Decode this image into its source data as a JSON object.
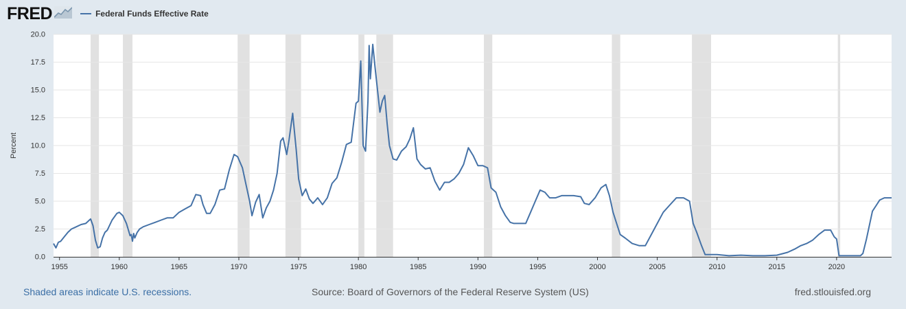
{
  "header": {
    "logo_text": "FRED",
    "logo_icon": "line-chart-icon",
    "series_legend": "Federal Funds Effective Rate"
  },
  "footer": {
    "recession_note": "Shaded areas indicate U.S. recessions.",
    "source": "Source: Board of Governors of the Federal Reserve System (US)",
    "site": "fred.stlouisfed.org"
  },
  "colors": {
    "background": "#e1e9f0",
    "plot_background": "#ffffff",
    "series": "#4572a7",
    "recession_shading": "#e1e1e1",
    "grid": "#e6e6e6"
  },
  "chart_data": {
    "type": "line",
    "title": "",
    "xlabel": "",
    "ylabel": "Percent",
    "xlim": [
      1954.5,
      2024.6
    ],
    "ylim": [
      0,
      20
    ],
    "x_ticks": [
      1955,
      1960,
      1965,
      1970,
      1975,
      1980,
      1985,
      1990,
      1995,
      2000,
      2005,
      2010,
      2015,
      2020
    ],
    "y_ticks": [
      0.0,
      2.5,
      5.0,
      7.5,
      10.0,
      12.5,
      15.0,
      17.5,
      20.0
    ],
    "y_tick_labels": [
      "0.0",
      "2.5",
      "5.0",
      "7.5",
      "10.0",
      "12.5",
      "15.0",
      "17.5",
      "20.0"
    ],
    "grid": "horizontal",
    "recessions": [
      [
        1957.6,
        1958.3
      ],
      [
        1960.3,
        1961.1
      ],
      [
        1969.9,
        1970.9
      ],
      [
        1973.9,
        1975.2
      ],
      [
        1980.0,
        1980.5
      ],
      [
        1981.5,
        1982.9
      ],
      [
        1990.5,
        1991.2
      ],
      [
        2001.2,
        2001.9
      ],
      [
        2007.9,
        2009.5
      ],
      [
        2020.1,
        2020.3
      ]
    ],
    "series": [
      {
        "name": "Federal Funds Effective Rate",
        "x": [
          1954.5,
          1954.7,
          1954.9,
          1955.1,
          1955.4,
          1955.7,
          1956.0,
          1956.4,
          1956.8,
          1957.2,
          1957.6,
          1957.8,
          1958.0,
          1958.2,
          1958.4,
          1958.6,
          1958.8,
          1959.0,
          1959.4,
          1959.8,
          1960.0,
          1960.3,
          1960.6,
          1960.9,
          1961.0,
          1961.1,
          1961.2,
          1961.3,
          1961.5,
          1961.7,
          1962.0,
          1962.5,
          1963.0,
          1963.5,
          1964.0,
          1964.5,
          1965.0,
          1965.5,
          1966.0,
          1966.4,
          1966.8,
          1967.0,
          1967.3,
          1967.6,
          1968.0,
          1968.4,
          1968.8,
          1969.2,
          1969.6,
          1969.9,
          1970.3,
          1970.6,
          1970.9,
          1971.1,
          1971.4,
          1971.7,
          1972.0,
          1972.3,
          1972.6,
          1972.9,
          1973.2,
          1973.5,
          1973.7,
          1974.0,
          1974.2,
          1974.5,
          1974.8,
          1975.0,
          1975.3,
          1975.6,
          1975.9,
          1976.2,
          1976.6,
          1977.0,
          1977.4,
          1977.8,
          1978.2,
          1978.6,
          1979.0,
          1979.4,
          1979.8,
          1980.0,
          1980.2,
          1980.4,
          1980.6,
          1980.8,
          1980.9,
          1981.0,
          1981.2,
          1981.4,
          1981.6,
          1981.8,
          1982.0,
          1982.2,
          1982.4,
          1982.6,
          1982.9,
          1983.2,
          1983.6,
          1984.0,
          1984.3,
          1984.6,
          1984.9,
          1985.2,
          1985.6,
          1986.0,
          1986.4,
          1986.8,
          1987.2,
          1987.6,
          1988.0,
          1988.4,
          1988.8,
          1989.2,
          1989.6,
          1990.0,
          1990.4,
          1990.8,
          1991.1,
          1991.5,
          1991.9,
          1992.3,
          1992.7,
          1993.0,
          1993.5,
          1994.0,
          1994.4,
          1994.8,
          1995.2,
          1995.6,
          1996.0,
          1996.5,
          1997.0,
          1997.5,
          1998.0,
          1998.6,
          1998.9,
          1999.3,
          1999.8,
          2000.3,
          2000.7,
          2001.0,
          2001.3,
          2001.6,
          2001.9,
          2002.3,
          2002.9,
          2003.5,
          2004.0,
          2004.5,
          2005.0,
          2005.5,
          2006.0,
          2006.6,
          2007.2,
          2007.7,
          2008.0,
          2008.3,
          2008.7,
          2009.0,
          2010.0,
          2011.0,
          2012.0,
          2013.0,
          2014.0,
          2015.0,
          2015.9,
          2016.5,
          2017.0,
          2017.5,
          2018.0,
          2018.5,
          2019.0,
          2019.5,
          2019.8,
          2020.0,
          2020.2,
          2020.5,
          2021.0,
          2021.5,
          2022.0,
          2022.2,
          2022.5,
          2022.8,
          2023.0,
          2023.3,
          2023.6,
          2024.0,
          2024.6
        ],
        "values": [
          1.2,
          0.8,
          1.3,
          1.4,
          1.8,
          2.2,
          2.5,
          2.7,
          2.9,
          3.0,
          3.4,
          2.8,
          1.5,
          0.8,
          0.9,
          1.7,
          2.2,
          2.4,
          3.3,
          3.9,
          4.0,
          3.7,
          3.0,
          1.9,
          2.0,
          1.4,
          2.1,
          1.7,
          2.2,
          2.5,
          2.7,
          2.9,
          3.1,
          3.3,
          3.5,
          3.5,
          4.0,
          4.3,
          4.6,
          5.6,
          5.5,
          4.7,
          3.9,
          3.9,
          4.7,
          6.0,
          6.1,
          7.8,
          9.2,
          9.0,
          8.0,
          6.5,
          5.0,
          3.7,
          4.9,
          5.6,
          3.5,
          4.4,
          5.0,
          6.0,
          7.5,
          10.4,
          10.7,
          9.2,
          10.5,
          12.9,
          9.6,
          7.0,
          5.5,
          6.1,
          5.2,
          4.8,
          5.3,
          4.7,
          5.3,
          6.6,
          7.1,
          8.5,
          10.1,
          10.3,
          13.8,
          14.0,
          17.6,
          10.0,
          9.5,
          14.0,
          19.0,
          16.0,
          19.1,
          17.0,
          15.0,
          13.0,
          14.0,
          14.5,
          12.0,
          10.0,
          8.8,
          8.7,
          9.5,
          9.9,
          10.6,
          11.6,
          8.8,
          8.3,
          7.9,
          8.0,
          6.8,
          6.0,
          6.7,
          6.7,
          7.0,
          7.5,
          8.3,
          9.8,
          9.1,
          8.2,
          8.2,
          8.0,
          6.2,
          5.8,
          4.5,
          3.7,
          3.1,
          3.0,
          3.0,
          3.0,
          4.0,
          5.0,
          6.0,
          5.8,
          5.3,
          5.3,
          5.5,
          5.5,
          5.5,
          5.4,
          4.8,
          4.7,
          5.3,
          6.2,
          6.5,
          5.5,
          4.0,
          3.0,
          2.0,
          1.7,
          1.2,
          1.0,
          1.0,
          2.0,
          3.0,
          4.0,
          4.6,
          5.3,
          5.3,
          5.0,
          3.0,
          2.2,
          1.0,
          0.2,
          0.2,
          0.1,
          0.15,
          0.1,
          0.1,
          0.15,
          0.4,
          0.7,
          1.0,
          1.2,
          1.5,
          2.0,
          2.4,
          2.4,
          1.8,
          1.6,
          0.1,
          0.1,
          0.1,
          0.1,
          0.1,
          0.3,
          1.6,
          3.1,
          4.1,
          4.6,
          5.1,
          5.3,
          5.3
        ]
      }
    ]
  }
}
